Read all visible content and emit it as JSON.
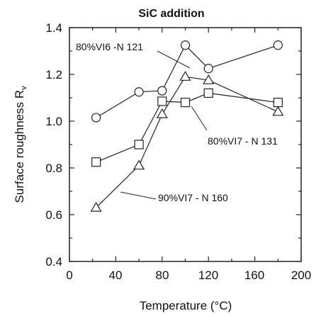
{
  "chart_data": {
    "type": "scatter",
    "title": "SiC addition",
    "xlabel": "Temperature (°C)",
    "ylabel": "Surface roughness R",
    "ylabel_subscript": "v",
    "xlim": [
      0,
      200
    ],
    "ylim": [
      0.4,
      1.4
    ],
    "xticks": [
      "0",
      "40",
      "80",
      "120",
      "160",
      "200"
    ],
    "yticks": [
      "0.4",
      "0.6",
      "0.8",
      "1.0",
      "1.2",
      "1.4"
    ],
    "grid": false,
    "colors": {
      "line": "#222222",
      "marker_fill": "#ffffff"
    },
    "series": [
      {
        "name": "80%VI6 -N 121",
        "marker": "circle",
        "x": [
          23,
          60,
          80,
          100,
          120,
          180
        ],
        "y": [
          1.015,
          1.125,
          1.13,
          1.325,
          1.225,
          1.325
        ]
      },
      {
        "name": "80%VI7 - N 131",
        "marker": "square",
        "x": [
          23,
          60,
          80,
          100,
          120,
          180
        ],
        "y": [
          0.825,
          0.9,
          1.085,
          1.08,
          1.12,
          1.08
        ]
      },
      {
        "name": "90%VI7 - N 160",
        "marker": "triangle",
        "x": [
          23,
          60,
          80,
          100,
          120,
          180
        ],
        "y": [
          0.63,
          0.81,
          1.03,
          1.19,
          1.175,
          1.04
        ]
      }
    ]
  }
}
